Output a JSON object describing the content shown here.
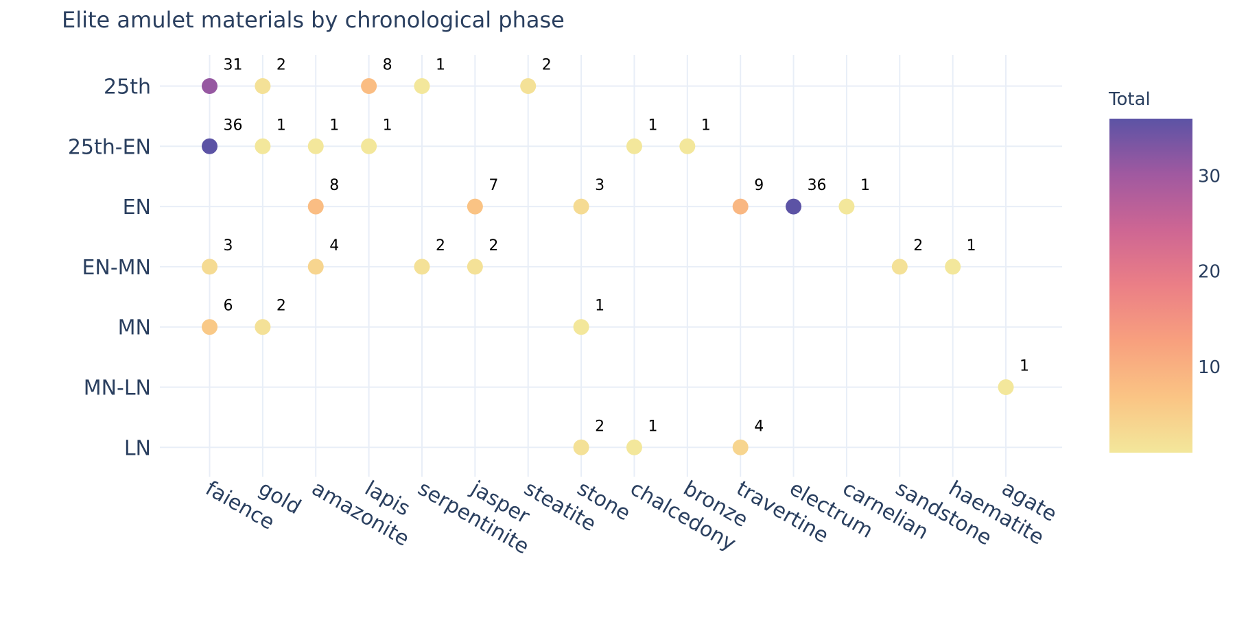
{
  "chart_data": {
    "type": "scatter",
    "title": "Elite amulet materials by chronological phase",
    "xlabel": "",
    "ylabel": "",
    "x_categories": [
      "faience",
      "gold",
      "amazonite",
      "lapis",
      "serpentinite",
      "jasper",
      "steatite",
      "stone",
      "chalcedony",
      "bronze",
      "travertine",
      "electrum",
      "carnelian",
      "sandstone",
      "haematite",
      "agate"
    ],
    "y_categories": [
      "25th",
      "25th-EN",
      "EN",
      "EN-MN",
      "MN",
      "MN-LN",
      "LN"
    ],
    "points": [
      {
        "x": "faience",
        "y": "25th",
        "value": 31
      },
      {
        "x": "gold",
        "y": "25th",
        "value": 2
      },
      {
        "x": "lapis",
        "y": "25th",
        "value": 8
      },
      {
        "x": "serpentinite",
        "y": "25th",
        "value": 1
      },
      {
        "x": "steatite",
        "y": "25th",
        "value": 2
      },
      {
        "x": "faience",
        "y": "25th-EN",
        "value": 36
      },
      {
        "x": "gold",
        "y": "25th-EN",
        "value": 1
      },
      {
        "x": "amazonite",
        "y": "25th-EN",
        "value": 1
      },
      {
        "x": "lapis",
        "y": "25th-EN",
        "value": 1
      },
      {
        "x": "chalcedony",
        "y": "25th-EN",
        "value": 1
      },
      {
        "x": "bronze",
        "y": "25th-EN",
        "value": 1
      },
      {
        "x": "amazonite",
        "y": "EN",
        "value": 8
      },
      {
        "x": "jasper",
        "y": "EN",
        "value": 7
      },
      {
        "x": "stone",
        "y": "EN",
        "value": 3
      },
      {
        "x": "travertine",
        "y": "EN",
        "value": 9
      },
      {
        "x": "electrum",
        "y": "EN",
        "value": 36
      },
      {
        "x": "carnelian",
        "y": "EN",
        "value": 1
      },
      {
        "x": "faience",
        "y": "EN-MN",
        "value": 3
      },
      {
        "x": "amazonite",
        "y": "EN-MN",
        "value": 4
      },
      {
        "x": "serpentinite",
        "y": "EN-MN",
        "value": 2
      },
      {
        "x": "jasper",
        "y": "EN-MN",
        "value": 2
      },
      {
        "x": "sandstone",
        "y": "EN-MN",
        "value": 2
      },
      {
        "x": "haematite",
        "y": "EN-MN",
        "value": 1
      },
      {
        "x": "faience",
        "y": "MN",
        "value": 6
      },
      {
        "x": "gold",
        "y": "MN",
        "value": 2
      },
      {
        "x": "stone",
        "y": "MN",
        "value": 1
      },
      {
        "x": "agate",
        "y": "MN-LN",
        "value": 1
      },
      {
        "x": "stone",
        "y": "LN",
        "value": 2
      },
      {
        "x": "chalcedony",
        "y": "LN",
        "value": 1
      },
      {
        "x": "travertine",
        "y": "LN",
        "value": 4
      }
    ],
    "colorbar": {
      "title": "Total",
      "ticks": [
        10,
        20,
        30
      ],
      "range": [
        1,
        36
      ],
      "colorscale": [
        "#f3e79b",
        "#fac484",
        "#f8a07e",
        "#eb7f86",
        "#ce6693",
        "#a059a0",
        "#5c53a5"
      ]
    },
    "grid": true,
    "gridcolor": "#e8eef7"
  }
}
